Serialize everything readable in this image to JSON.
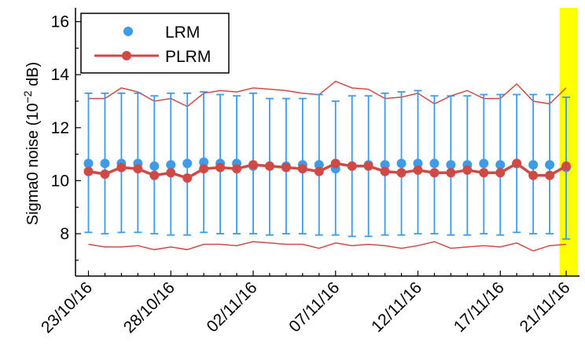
{
  "chart_data": {
    "type": "line",
    "title": "",
    "xlabel": "",
    "ylabel_main": "Sigma0 noise (10",
    "ylabel_exp": "−2",
    "ylabel_tail": " dB)",
    "ylim": [
      6.5,
      16.5
    ],
    "yticks": [
      "8",
      "10",
      "12",
      "14",
      "16"
    ],
    "xticks": [
      "23/10/16",
      "28/10/16",
      "02/11/16",
      "07/11/16",
      "12/11/16",
      "17/11/16",
      "21/11/16"
    ],
    "xtick_days": [
      0,
      5,
      10,
      15,
      20,
      25,
      29
    ],
    "dates": [
      "23/10/16",
      "24/10/16",
      "25/10/16",
      "26/10/16",
      "27/10/16",
      "28/10/16",
      "29/10/16",
      "30/10/16",
      "31/10/16",
      "01/11/16",
      "02/11/16",
      "03/11/16",
      "04/11/16",
      "05/11/16",
      "06/11/16",
      "07/11/16",
      "08/11/16",
      "09/11/16",
      "10/11/16",
      "11/11/16",
      "12/11/16",
      "13/11/16",
      "14/11/16",
      "15/11/16",
      "16/11/16",
      "17/11/16",
      "18/11/16",
      "19/11/16",
      "20/11/16",
      "21/11/16"
    ],
    "highlight": {
      "from_day": 28.6,
      "to_day": 29.7,
      "color": "#ffff00"
    },
    "legend": {
      "position": "top-left"
    },
    "grid": false,
    "series": [
      {
        "name": "LRM",
        "style": "markers with error bars",
        "color": "#3d9be8",
        "values": [
          10.65,
          10.65,
          10.65,
          10.65,
          10.55,
          10.6,
          10.65,
          10.7,
          10.65,
          10.65,
          10.55,
          10.55,
          10.55,
          10.6,
          10.6,
          10.45,
          10.55,
          10.6,
          10.6,
          10.65,
          10.65,
          10.65,
          10.6,
          10.6,
          10.65,
          10.6,
          10.65,
          10.6,
          10.6,
          10.5
        ],
        "upper": [
          13.3,
          13.3,
          13.3,
          13.3,
          13.2,
          13.3,
          13.3,
          13.35,
          13.25,
          13.2,
          13.3,
          13.1,
          13.1,
          13.1,
          13.25,
          13.0,
          13.2,
          13.2,
          13.3,
          13.35,
          13.4,
          13.2,
          13.2,
          13.2,
          13.25,
          13.25,
          13.25,
          13.25,
          13.25,
          13.15
        ],
        "lower": [
          8.05,
          8.0,
          8.05,
          8.05,
          8.0,
          7.95,
          7.95,
          8.05,
          8.0,
          8.0,
          8.0,
          7.95,
          8.0,
          8.0,
          7.95,
          7.95,
          7.9,
          7.9,
          7.95,
          7.95,
          8.0,
          8.0,
          7.95,
          7.95,
          8.0,
          7.95,
          8.05,
          8.0,
          8.0,
          7.8
        ]
      },
      {
        "name": "PLRM",
        "style": "line with markers and envelope",
        "color": "#d04a45",
        "values": [
          10.35,
          10.25,
          10.5,
          10.45,
          10.2,
          10.3,
          10.1,
          10.45,
          10.5,
          10.45,
          10.6,
          10.55,
          10.5,
          10.45,
          10.35,
          10.65,
          10.55,
          10.55,
          10.35,
          10.3,
          10.4,
          10.3,
          10.3,
          10.4,
          10.3,
          10.3,
          10.65,
          10.2,
          10.2,
          10.55
        ],
        "upper": [
          13.1,
          13.1,
          13.5,
          13.35,
          13.0,
          13.1,
          12.8,
          13.3,
          13.4,
          13.35,
          13.5,
          13.45,
          13.4,
          13.3,
          13.25,
          13.75,
          13.5,
          13.45,
          13.1,
          13.15,
          13.3,
          12.9,
          13.2,
          13.4,
          13.1,
          13.1,
          13.65,
          13.0,
          12.9,
          13.5
        ],
        "lower": [
          7.6,
          7.5,
          7.5,
          7.55,
          7.4,
          7.5,
          7.4,
          7.6,
          7.6,
          7.55,
          7.7,
          7.65,
          7.6,
          7.6,
          7.45,
          7.65,
          7.55,
          7.6,
          7.55,
          7.45,
          7.55,
          7.7,
          7.45,
          7.5,
          7.55,
          7.5,
          7.65,
          7.35,
          7.55,
          7.6
        ]
      }
    ]
  },
  "colors": {
    "lrm": "#3d9be8",
    "plrm": "#d04a45",
    "highlight": "#ffff00",
    "axis": "#000000"
  }
}
